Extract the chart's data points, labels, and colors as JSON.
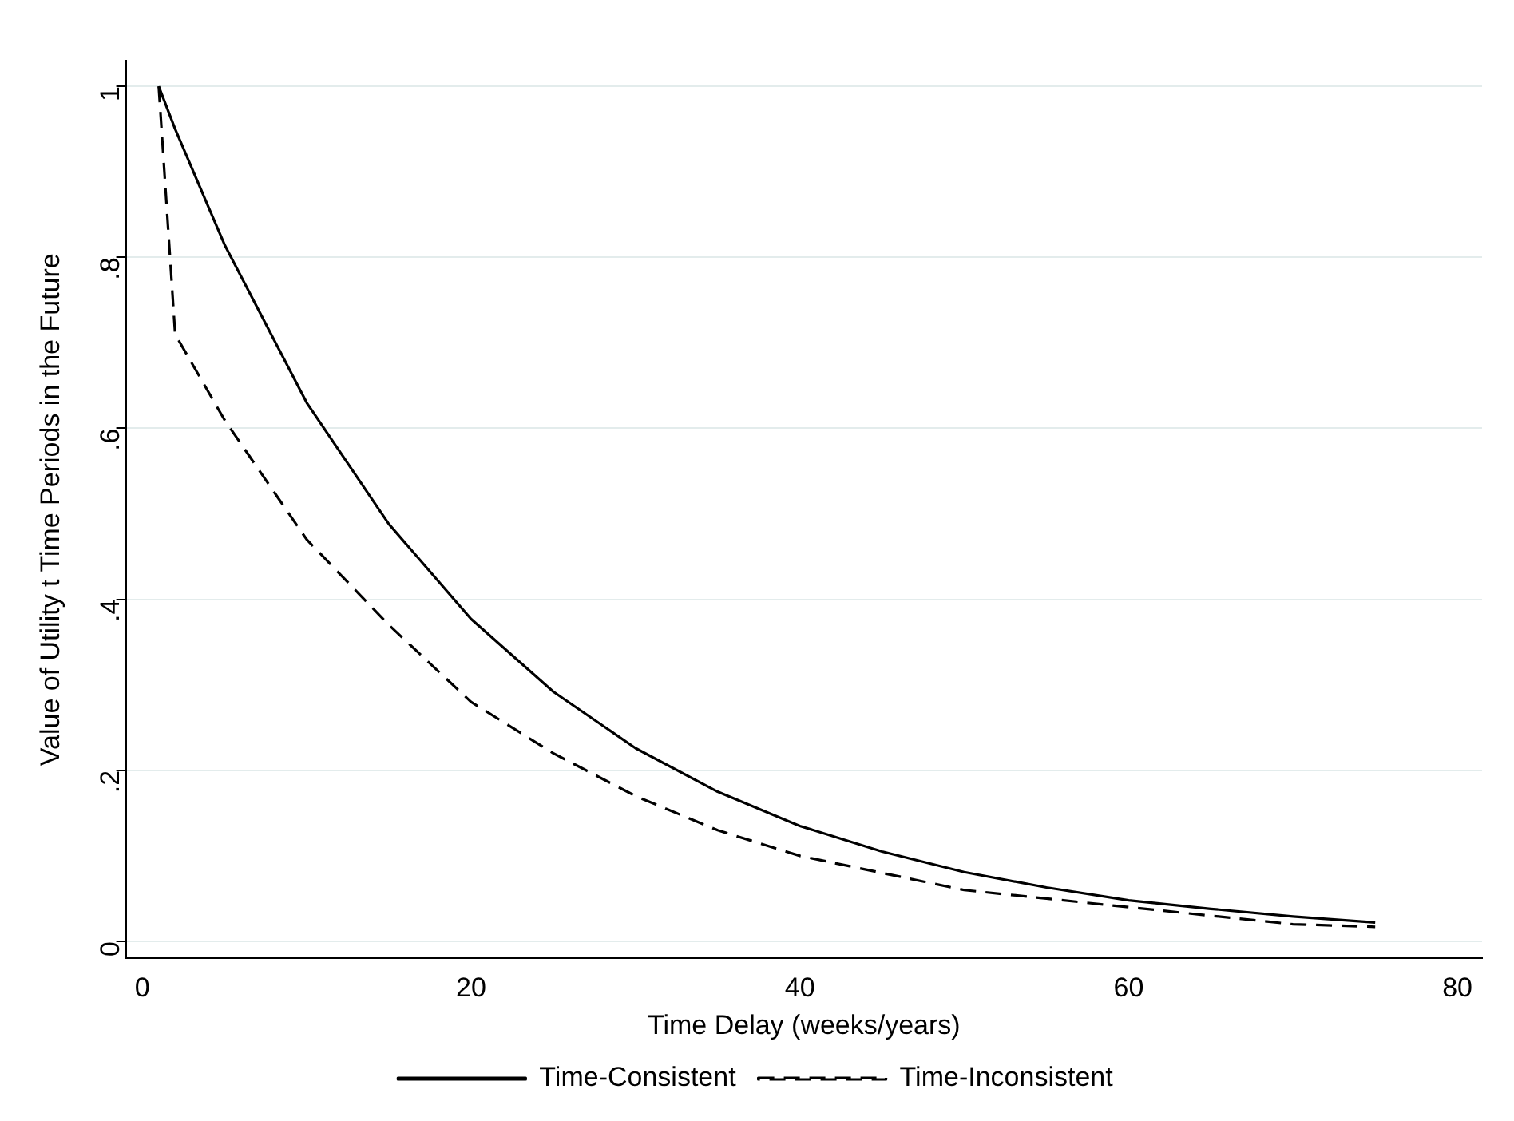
{
  "chart_data": {
    "type": "line",
    "xlabel": "Time Delay (weeks/years)",
    "ylabel": "Value of Utility t Time Periods in the Future",
    "series": [
      {
        "name": "Time-Consistent",
        "color": "#000000",
        "line_style": "solid",
        "x": [
          1,
          2,
          5,
          10,
          15,
          20,
          25,
          30,
          35,
          40,
          45,
          50,
          55,
          60,
          65,
          70,
          75
        ],
        "values": [
          1,
          0.95,
          0.815,
          0.63,
          0.488,
          0.377,
          0.292,
          0.226,
          0.175,
          0.135,
          0.105,
          0.081,
          0.063,
          0.048,
          0.038,
          0.029,
          0.022
        ]
      },
      {
        "name": "Time-Inconsistent",
        "color": "#000000",
        "line_style": "dashed",
        "x": [
          1,
          2,
          5,
          10,
          15,
          20,
          25,
          30,
          35,
          40,
          45,
          50,
          55,
          60,
          65,
          70,
          75
        ],
        "values": [
          1,
          0.71,
          0.61,
          0.47,
          0.37,
          0.28,
          0.22,
          0.17,
          0.13,
          0.1,
          0.08,
          0.06,
          0.05,
          0.04,
          0.03,
          0.02,
          0.017
        ]
      }
    ],
    "xlim": [
      -1,
      81.5
    ],
    "xticks": [
      0,
      20,
      40,
      60,
      80
    ],
    "ylim": [
      -0.02,
      1.03
    ],
    "yticks": [
      0,
      {
        "value": 0.2,
        "label": ".2"
      },
      {
        "value": 0.4,
        "label": ".4"
      },
      {
        "value": 0.6,
        "label": ".6"
      },
      {
        "value": 0.8,
        "label": ".8"
      },
      1
    ],
    "grid": "y",
    "legend": "bottom",
    "marker": "none"
  }
}
